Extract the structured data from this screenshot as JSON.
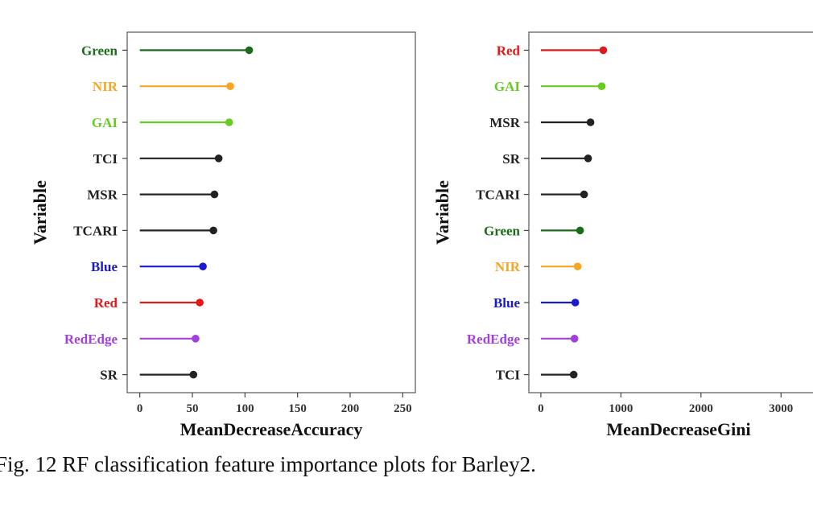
{
  "figure": {
    "caption": "Fig.  12  RF classification feature importance plots for Barley2."
  },
  "chart_data": [
    {
      "type": "lollipop",
      "xlabel": "MeanDecreaseAccuracy",
      "ylabel": "Variable",
      "xlim": [
        -12,
        262
      ],
      "xticks": [
        0,
        50,
        100,
        150,
        200,
        250
      ],
      "grid": false,
      "categories": [
        "Green",
        "NIR",
        "GAI",
        "TCI",
        "MSR",
        "TCARI",
        "Blue",
        "Red",
        "RedEdge",
        "SR"
      ],
      "values": [
        104,
        86,
        85,
        75,
        71,
        70,
        60,
        57,
        53,
        51
      ],
      "colors": [
        "#1a6b1a",
        "#f5a623",
        "#66cc22",
        "#222222",
        "#222222",
        "#222222",
        "#1a1acc",
        "#e01a1a",
        "#a040e0",
        "#222222"
      ]
    },
    {
      "type": "lollipop",
      "xlabel": "MeanDecreaseGini",
      "ylabel": "Variable",
      "xlim": [
        -150,
        3500
      ],
      "xticks": [
        0,
        1000,
        2000,
        3000
      ],
      "grid": false,
      "categories": [
        "Red",
        "GAI",
        "MSR",
        "SR",
        "TCARI",
        "Green",
        "NIR",
        "Blue",
        "RedEdge",
        "TCI"
      ],
      "values": [
        780,
        760,
        620,
        590,
        540,
        490,
        460,
        430,
        420,
        410
      ],
      "colors": [
        "#e01a1a",
        "#66cc22",
        "#222222",
        "#222222",
        "#222222",
        "#1a6b1a",
        "#f5a623",
        "#1a1acc",
        "#a040e0",
        "#222222"
      ]
    }
  ]
}
